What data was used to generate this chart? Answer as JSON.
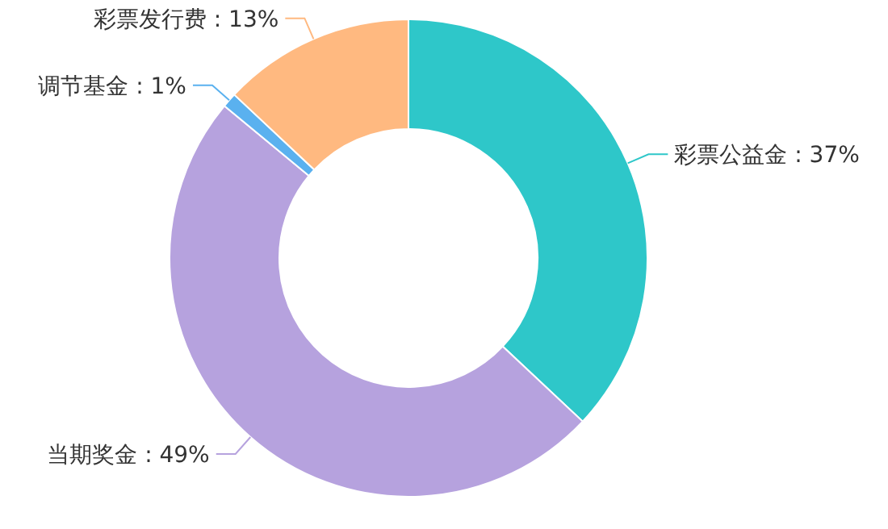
{
  "chart_data": {
    "type": "donut",
    "categories": [
      "彩票公益金",
      "当期奖金",
      "调节基金",
      "彩票发行费"
    ],
    "values": [
      37,
      49,
      1,
      13
    ],
    "value_labels": [
      "37%",
      "49%",
      "1%",
      "13%"
    ],
    "colors": [
      "#2ec7c9",
      "#b6a2de",
      "#5ab1ef",
      "#ffb980"
    ],
    "legend": false
  }
}
